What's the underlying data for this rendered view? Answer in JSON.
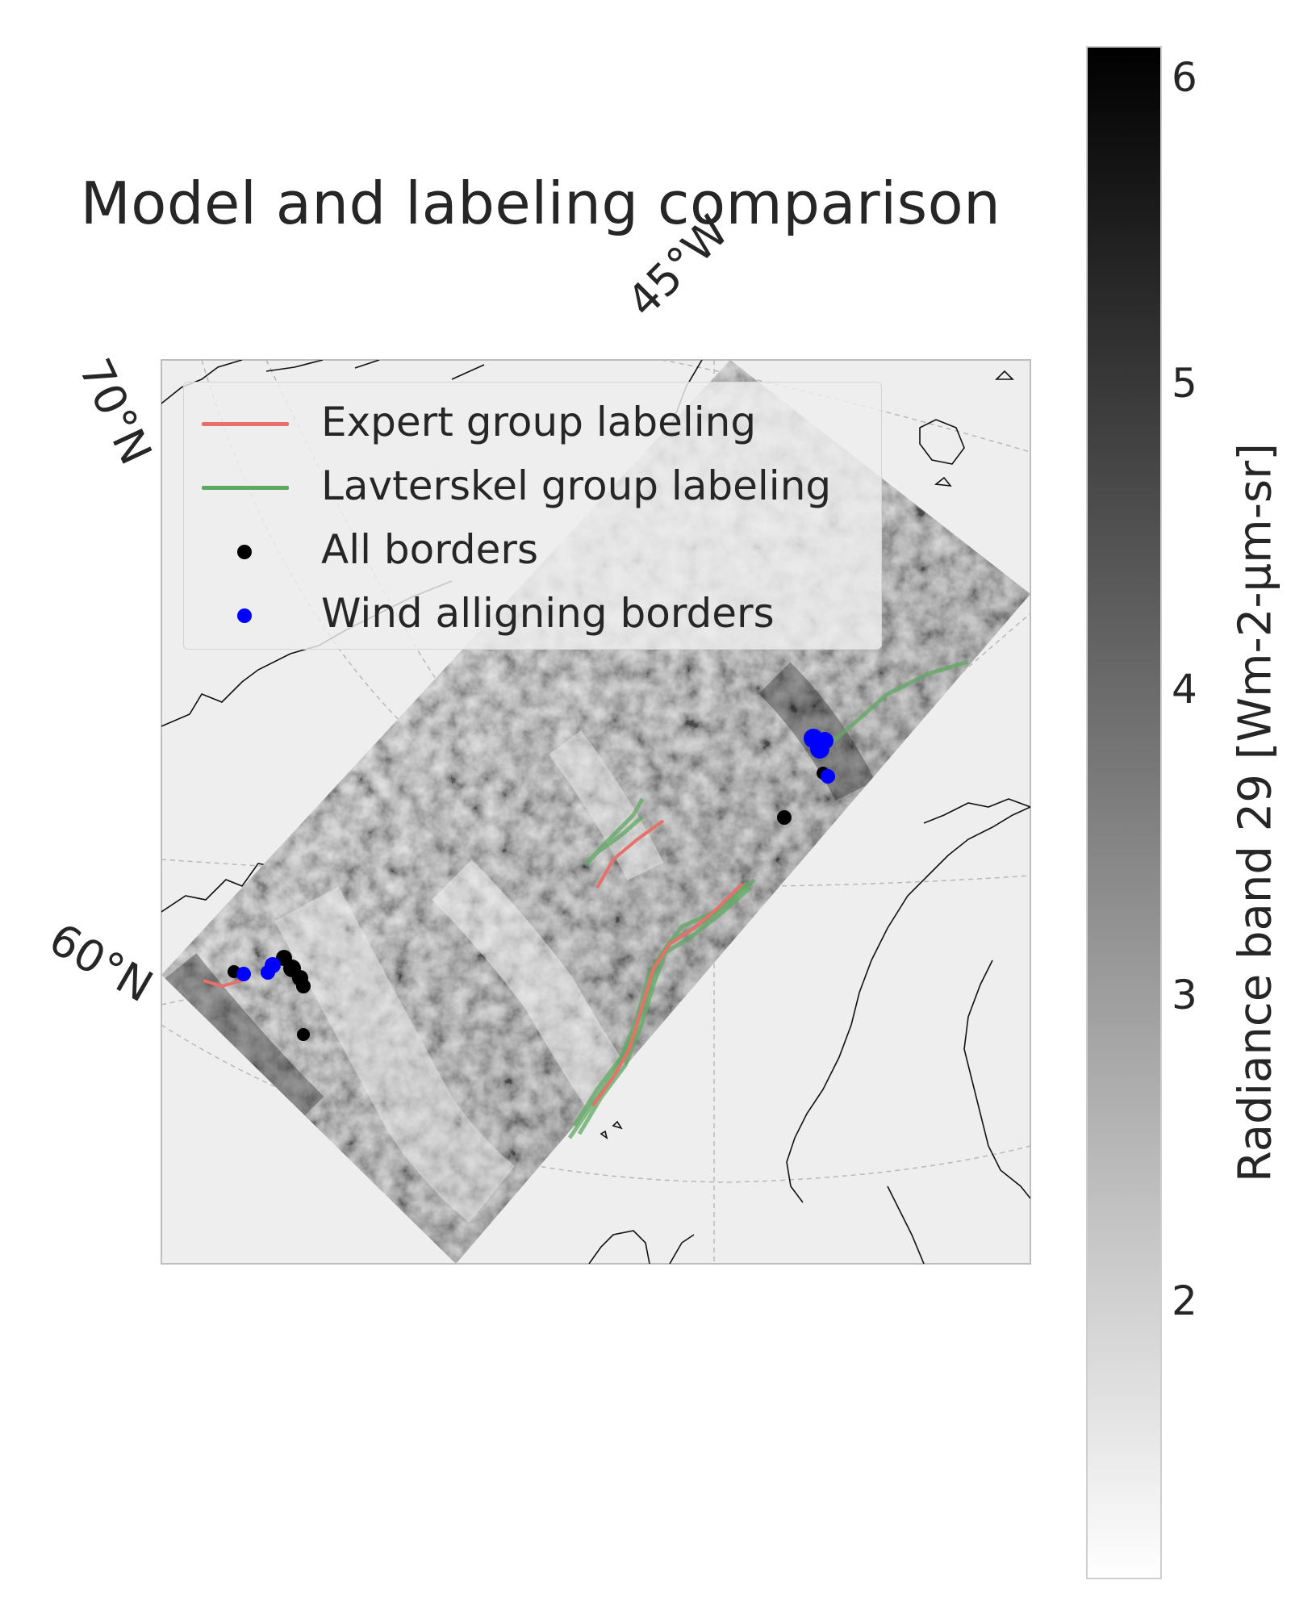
{
  "title": "Model and labeling comparison",
  "map": {
    "grid_labels": {
      "lon_45w": "45°W",
      "lat_70n": "70°N",
      "lat_60n": "60°N"
    },
    "swath_colormap": "grayscale",
    "map_background": "#eeeeee",
    "coastline_color": "#000000"
  },
  "legend": {
    "position": "upper-left",
    "items": [
      {
        "label": "Expert group labeling",
        "type": "line",
        "color": "#e8706b"
      },
      {
        "label": "Lavterskel group labeling",
        "type": "line",
        "color": "#5fa862"
      },
      {
        "label": "All borders",
        "type": "dot",
        "color": "#000000"
      },
      {
        "label": "Wind alligning borders",
        "type": "dot",
        "color": "#0000ff"
      }
    ]
  },
  "colorbar": {
    "label": "Radiance band 29 [Wm-2-µm-sr]",
    "ticks": [
      "6",
      "5",
      "4",
      "3",
      "2"
    ],
    "range": [
      1.1,
      6.1
    ],
    "colormap": "white-to-black"
  }
}
